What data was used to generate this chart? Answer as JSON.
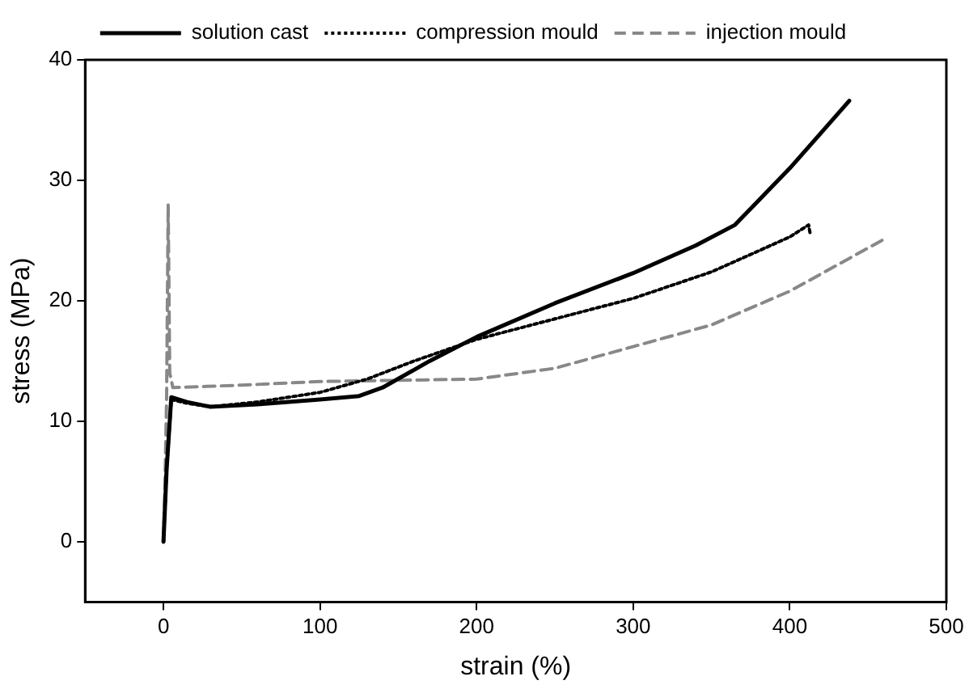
{
  "chart_data": {
    "type": "line",
    "xlabel": "strain (%)",
    "ylabel": "stress (MPa)",
    "xlim": [
      -50,
      500
    ],
    "xticks": [
      0,
      100,
      200,
      300,
      400,
      500
    ],
    "ylim": [
      -5,
      40
    ],
    "yticks": [
      0,
      10,
      20,
      30,
      40
    ],
    "grid": false,
    "legend": "top",
    "marker": "none",
    "series": [
      {
        "name": "solution cast",
        "color": "#000000",
        "line_style": "solid",
        "x": [
          0,
          2,
          5,
          15,
          30,
          60,
          100,
          125,
          140,
          170,
          200,
          250,
          300,
          340,
          365,
          400,
          438
        ],
        "values": [
          0,
          6,
          12,
          11.6,
          11.2,
          11.4,
          11.8,
          12.1,
          12.8,
          15,
          17,
          19.8,
          22.3,
          24.6,
          26.3,
          31,
          36.6
        ]
      },
      {
        "name": "compression mould",
        "color": "#000000",
        "line_style": "dotted",
        "x": [
          0,
          2,
          5,
          15,
          30,
          60,
          100,
          130,
          160,
          200,
          250,
          300,
          350,
          400,
          412,
          413
        ],
        "values": [
          0,
          6,
          11.8,
          11.5,
          11.2,
          11.6,
          12.4,
          13.5,
          15,
          16.8,
          18.5,
          20.2,
          22.4,
          25.3,
          26.3,
          25.6
        ]
      },
      {
        "name": "injection mould",
        "color": "#888888",
        "line_style": "dashed",
        "x": [
          0,
          1,
          2,
          3,
          4,
          6,
          50,
          100,
          150,
          200,
          250,
          300,
          350,
          400,
          460
        ],
        "values": [
          0,
          5,
          12,
          28,
          14,
          12.8,
          13,
          13.3,
          13.4,
          13.5,
          14.4,
          16.2,
          18,
          20.8,
          25.1
        ]
      }
    ]
  }
}
